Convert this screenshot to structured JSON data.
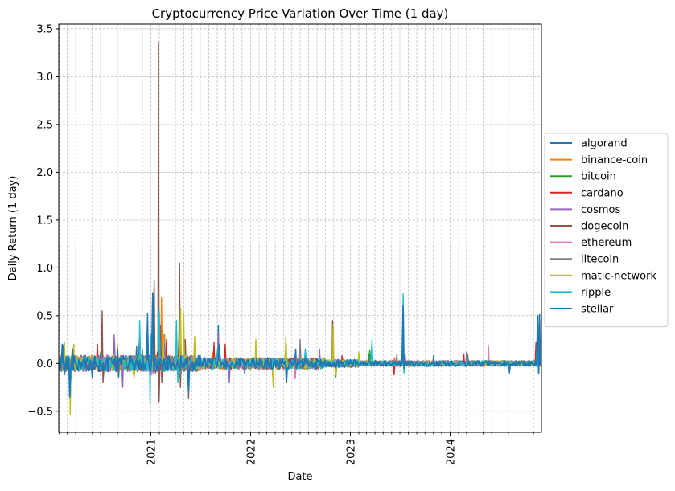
{
  "chart_data": {
    "type": "line",
    "title": "Cryptocurrency Price Variation Over Time (1 day)",
    "xlabel": "Date",
    "ylabel": "Daily Return (1 day)",
    "xlim": [
      "2020-01-30",
      "2024-11-30"
    ],
    "ylim": [
      -0.72,
      3.55
    ],
    "x_ticks": [
      {
        "label": "2021",
        "date": "2021-01-01"
      },
      {
        "label": "2022",
        "date": "2022-01-01"
      },
      {
        "label": "2023",
        "date": "2023-01-01"
      },
      {
        "label": "2024",
        "date": "2024-01-01"
      }
    ],
    "y_ticks": [
      {
        "label": "−0.5",
        "value": -0.5
      },
      {
        "label": "0.0",
        "value": 0.0
      },
      {
        "label": "0.5",
        "value": 0.5
      },
      {
        "label": "1.0",
        "value": 1.0
      },
      {
        "label": "1.5",
        "value": 1.5
      },
      {
        "label": "2.0",
        "value": 2.0
      },
      {
        "label": "2.5",
        "value": 2.5
      },
      {
        "label": "3.0",
        "value": 3.0
      },
      {
        "label": "3.5",
        "value": 3.5
      }
    ],
    "grid": true,
    "legend_position": "right",
    "series": [
      {
        "name": "algorand",
        "color": "#1f77b4",
        "points": [
          [
            "2020-02-01",
            0.0
          ],
          [
            "2020-02-15",
            0.19
          ],
          [
            "2020-02-20",
            -0.12
          ],
          [
            "2020-03-12",
            -0.36
          ],
          [
            "2020-03-20",
            0.14
          ],
          [
            "2020-05-10",
            -0.08
          ],
          [
            "2020-07-01",
            0.12
          ],
          [
            "2020-09-05",
            -0.15
          ],
          [
            "2020-11-10",
            0.18
          ],
          [
            "2020-12-20",
            0.52
          ],
          [
            "2021-01-05",
            -0.1
          ],
          [
            "2021-02-20",
            0.3
          ],
          [
            "2021-04-15",
            -0.15
          ],
          [
            "2021-06-10",
            0.22
          ],
          [
            "2021-09-05",
            0.4
          ],
          [
            "2021-12-10",
            -0.1
          ],
          [
            "2022-05-12",
            -0.2
          ],
          [
            "2022-06-15",
            0.15
          ],
          [
            "2022-11-09",
            -0.12
          ],
          [
            "2023-03-10",
            0.1
          ],
          [
            "2023-07-13",
            0.18
          ],
          [
            "2023-11-01",
            0.08
          ],
          [
            "2024-03-05",
            0.1
          ],
          [
            "2024-08-05",
            -0.1
          ],
          [
            "2024-11-15",
            0.12
          ],
          [
            "2024-11-29",
            0.0
          ]
        ]
      },
      {
        "name": "binance-coin",
        "color": "#ff7f0e",
        "points": [
          [
            "2020-02-01",
            0.0
          ],
          [
            "2020-03-12",
            -0.2
          ],
          [
            "2020-05-01",
            0.06
          ],
          [
            "2020-09-01",
            0.1
          ],
          [
            "2021-01-10",
            0.12
          ],
          [
            "2021-02-09",
            0.69
          ],
          [
            "2021-02-19",
            0.3
          ],
          [
            "2021-04-20",
            -0.15
          ],
          [
            "2021-05-19",
            -0.22
          ],
          [
            "2021-08-15",
            0.12
          ],
          [
            "2022-05-12",
            -0.1
          ],
          [
            "2022-11-08",
            -0.1
          ],
          [
            "2023-06-12",
            0.06
          ],
          [
            "2024-03-05",
            0.05
          ],
          [
            "2024-11-29",
            0.0
          ]
        ]
      },
      {
        "name": "bitcoin",
        "color": "#2ca02c",
        "points": [
          [
            "2020-02-01",
            0.0
          ],
          [
            "2020-03-12",
            -0.37
          ],
          [
            "2020-03-20",
            0.15
          ],
          [
            "2020-07-01",
            0.05
          ],
          [
            "2020-12-01",
            0.08
          ],
          [
            "2021-01-05",
            0.1
          ],
          [
            "2021-05-19",
            -0.14
          ],
          [
            "2021-10-01",
            0.07
          ],
          [
            "2022-06-13",
            -0.15
          ],
          [
            "2022-11-09",
            -0.14
          ],
          [
            "2023-03-13",
            0.14
          ],
          [
            "2024-03-05",
            0.08
          ],
          [
            "2024-11-29",
            0.0
          ]
        ]
      },
      {
        "name": "cardano",
        "color": "#d62728",
        "points": [
          [
            "2020-02-01",
            0.0
          ],
          [
            "2020-03-12",
            -0.3
          ],
          [
            "2020-06-20",
            0.2
          ],
          [
            "2020-11-20",
            0.25
          ],
          [
            "2021-01-25",
            0.12
          ],
          [
            "2021-02-27",
            0.25
          ],
          [
            "2021-08-20",
            0.22
          ],
          [
            "2021-09-30",
            0.2
          ],
          [
            "2022-05-12",
            -0.18
          ],
          [
            "2022-12-01",
            0.08
          ],
          [
            "2023-06-10",
            -0.12
          ],
          [
            "2024-02-20",
            0.1
          ],
          [
            "2024-11-10",
            0.22
          ],
          [
            "2024-11-29",
            0.0
          ]
        ]
      },
      {
        "name": "cosmos",
        "color": "#9467bd",
        "points": [
          [
            "2020-02-01",
            0.0
          ],
          [
            "2020-03-12",
            -0.25
          ],
          [
            "2020-08-20",
            0.3
          ],
          [
            "2020-09-20",
            -0.25
          ],
          [
            "2021-02-20",
            0.2
          ],
          [
            "2021-09-05",
            0.31
          ],
          [
            "2021-10-15",
            -0.2
          ],
          [
            "2022-05-12",
            -0.15
          ],
          [
            "2022-09-10",
            0.15
          ],
          [
            "2023-07-20",
            0.1
          ],
          [
            "2024-03-01",
            0.12
          ],
          [
            "2024-11-29",
            0.0
          ]
        ]
      },
      {
        "name": "dogecoin",
        "color": "#8c564b",
        "points": [
          [
            "2020-02-01",
            0.0
          ],
          [
            "2020-07-07",
            0.55
          ],
          [
            "2020-07-10",
            -0.2
          ],
          [
            "2020-12-20",
            0.2
          ],
          [
            "2021-01-06",
            0.3
          ],
          [
            "2021-01-13",
            0.87
          ],
          [
            "2021-01-18",
            -0.1
          ],
          [
            "2021-01-29",
            3.36
          ],
          [
            "2021-01-31",
            -0.4
          ],
          [
            "2021-02-05",
            0.4
          ],
          [
            "2021-02-10",
            -0.2
          ],
          [
            "2021-04-14",
            0.3
          ],
          [
            "2021-04-16",
            1.05
          ],
          [
            "2021-04-19",
            -0.25
          ],
          [
            "2021-05-07",
            0.25
          ],
          [
            "2021-05-19",
            -0.36
          ],
          [
            "2022-10-28",
            0.45
          ],
          [
            "2022-11-09",
            -0.1
          ],
          [
            "2024-11-29",
            0.0
          ]
        ]
      },
      {
        "name": "ethereum",
        "color": "#e377c2",
        "points": [
          [
            "2020-02-01",
            0.0
          ],
          [
            "2020-03-12",
            -0.42
          ],
          [
            "2020-03-20",
            0.12
          ],
          [
            "2020-07-25",
            0.1
          ],
          [
            "2021-01-04",
            -0.12
          ],
          [
            "2021-05-19",
            -0.27
          ],
          [
            "2022-06-13",
            -0.16
          ],
          [
            "2024-05-20",
            0.19
          ],
          [
            "2024-11-29",
            0.0
          ]
        ]
      },
      {
        "name": "litecoin",
        "color": "#7f7f7f",
        "points": [
          [
            "2020-02-01",
            0.0
          ],
          [
            "2020-03-12",
            -0.35
          ],
          [
            "2020-12-01",
            0.15
          ],
          [
            "2021-01-05",
            0.2
          ],
          [
            "2021-04-20",
            -0.15
          ],
          [
            "2022-07-01",
            0.25
          ],
          [
            "2023-06-20",
            0.1
          ],
          [
            "2024-11-29",
            0.0
          ]
        ]
      },
      {
        "name": "matic-network",
        "color": "#bcbd22",
        "points": [
          [
            "2020-02-01",
            0.0
          ],
          [
            "2020-02-20",
            0.22
          ],
          [
            "2020-03-12",
            -0.53
          ],
          [
            "2020-03-25",
            0.2
          ],
          [
            "2020-09-01",
            0.2
          ],
          [
            "2020-11-01",
            -0.15
          ],
          [
            "2021-02-15",
            0.3
          ],
          [
            "2021-04-20",
            0.58
          ],
          [
            "2021-05-01",
            0.53
          ],
          [
            "2021-05-19",
            -0.3
          ],
          [
            "2021-06-10",
            0.28
          ],
          [
            "2022-01-20",
            0.25
          ],
          [
            "2022-03-25",
            -0.25
          ],
          [
            "2022-05-10",
            0.28
          ],
          [
            "2022-10-30",
            0.4
          ],
          [
            "2022-11-09",
            -0.12
          ],
          [
            "2023-02-01",
            0.12
          ],
          [
            "2024-11-29",
            0.0
          ]
        ]
      },
      {
        "name": "ripple",
        "color": "#17becf",
        "points": [
          [
            "2020-02-01",
            0.0
          ],
          [
            "2020-03-12",
            -0.3
          ],
          [
            "2020-11-21",
            0.45
          ],
          [
            "2020-12-29",
            -0.42
          ],
          [
            "2021-01-01",
            0.3
          ],
          [
            "2021-02-01",
            0.55
          ],
          [
            "2021-04-05",
            0.45
          ],
          [
            "2021-04-10",
            -0.2
          ],
          [
            "2021-09-01",
            0.15
          ],
          [
            "2022-07-20",
            0.15
          ],
          [
            "2023-03-21",
            0.25
          ],
          [
            "2023-07-13",
            0.73
          ],
          [
            "2023-07-16",
            -0.1
          ],
          [
            "2024-11-14",
            0.25
          ],
          [
            "2024-11-29",
            0.0
          ]
        ]
      },
      {
        "name": "stellar",
        "color": "#1f77b4",
        "points": [
          [
            "2020-02-01",
            0.0
          ],
          [
            "2020-02-12",
            0.2
          ],
          [
            "2020-03-10",
            -0.35
          ],
          [
            "2020-03-20",
            0.15
          ],
          [
            "2020-06-01",
            -0.15
          ],
          [
            "2020-09-01",
            0.15
          ],
          [
            "2020-12-20",
            0.3
          ],
          [
            "2021-01-08",
            0.74
          ],
          [
            "2021-01-12",
            -0.1
          ],
          [
            "2021-05-19",
            -0.3
          ],
          [
            "2021-09-08",
            0.2
          ],
          [
            "2022-05-12",
            -0.2
          ],
          [
            "2023-07-13",
            0.6
          ],
          [
            "2023-07-16",
            -0.05
          ],
          [
            "2024-11-16",
            0.5
          ],
          [
            "2024-11-20",
            -0.1
          ],
          [
            "2024-11-23",
            0.51
          ],
          [
            "2024-11-29",
            0.0
          ]
        ]
      }
    ]
  }
}
